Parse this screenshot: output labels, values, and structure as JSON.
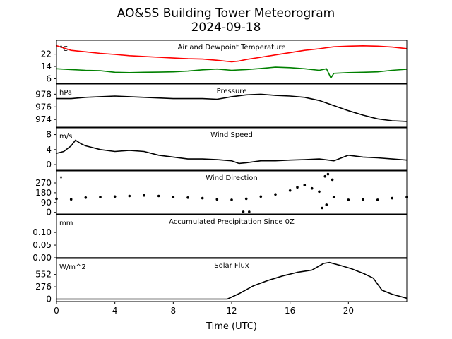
{
  "figure": {
    "title": "AO&SS Building Tower Meteorogram",
    "subtitle": "2024-09-18",
    "xlabel": "Time (UTC)",
    "x_ticks": [
      0,
      4,
      8,
      12,
      16,
      20
    ],
    "x_range": [
      0,
      24
    ]
  },
  "chart_data": [
    {
      "type": "line",
      "title": "Air and Dewpoint Temperature",
      "unit": "°C",
      "ylim": [
        3,
        31
      ],
      "yticks": [
        6,
        14,
        22
      ],
      "series": [
        {
          "color": "#ff0000",
          "x": [
            0,
            0.5,
            1,
            1.5,
            2,
            3,
            4,
            5,
            6,
            7,
            8,
            9,
            10,
            11,
            12,
            12.5,
            13,
            14,
            15,
            16,
            17,
            18,
            18.5,
            19,
            20,
            21,
            22,
            23,
            24
          ],
          "y": [
            27.5,
            26,
            24.5,
            24,
            23.5,
            22.5,
            21.8,
            21,
            20.5,
            20,
            19.5,
            19,
            18.8,
            18,
            17,
            17.5,
            18.5,
            20,
            21.5,
            23,
            24.5,
            25.5,
            26.2,
            26.8,
            27.2,
            27.4,
            27.2,
            26.6,
            25.6
          ]
        },
        {
          "color": "#008000",
          "x": [
            0,
            1,
            2,
            3,
            4,
            5,
            6,
            7,
            8,
            9,
            10,
            11,
            12,
            13,
            14,
            15,
            16,
            17,
            18,
            18.5,
            18.8,
            19,
            20,
            21,
            22,
            23,
            24
          ],
          "y": [
            12.5,
            12,
            11.5,
            11.2,
            10.2,
            10,
            10.2,
            10.3,
            10.5,
            11,
            11.8,
            12.3,
            11.5,
            12,
            12.7,
            13.5,
            13.2,
            12.5,
            11.5,
            12.5,
            6.5,
            9.5,
            10,
            10.2,
            10.5,
            11.5,
            12.2
          ]
        }
      ]
    },
    {
      "type": "line",
      "title": "Pressure",
      "unit": "hPa",
      "ylim": [
        972.8,
        979.6
      ],
      "yticks": [
        974,
        976,
        978
      ],
      "series": [
        {
          "color": "#000000",
          "x": [
            0,
            1,
            2,
            3,
            4,
            5,
            6,
            7,
            8,
            9,
            10,
            11,
            12,
            13,
            14,
            15,
            16,
            17,
            18,
            19,
            20,
            21,
            22,
            23,
            24
          ],
          "y": [
            977.3,
            977.3,
            977.5,
            977.6,
            977.7,
            977.6,
            977.5,
            977.4,
            977.3,
            977.3,
            977.3,
            977.2,
            977.6,
            977.9,
            978.0,
            977.8,
            977.7,
            977.5,
            977.0,
            976.2,
            975.4,
            974.7,
            974.1,
            973.8,
            973.7
          ]
        }
      ]
    },
    {
      "type": "line",
      "title": "Wind Speed",
      "unit": "m/s",
      "ylim": [
        -1.5,
        9.8
      ],
      "yticks": [
        0,
        4,
        8
      ],
      "series": [
        {
          "color": "#000000",
          "x": [
            0,
            0.5,
            1,
            1.3,
            1.7,
            2,
            2.5,
            3,
            4,
            5,
            6,
            7,
            8,
            9,
            10,
            11,
            12,
            12.5,
            13,
            14,
            15,
            16,
            17,
            18,
            19,
            20,
            21,
            22,
            23,
            24
          ],
          "y": [
            3,
            3.5,
            5,
            6.5,
            5.5,
            5,
            4.5,
            4,
            3.5,
            3.8,
            3.5,
            2.5,
            2,
            1.5,
            1.5,
            1.3,
            1,
            0.3,
            0.5,
            1,
            1,
            1.2,
            1.3,
            1.5,
            1,
            2.5,
            2,
            1.8,
            1.5,
            1.2
          ]
        }
      ]
    },
    {
      "type": "scatter",
      "title": "Wind Direction",
      "unit": "°",
      "ylim": [
        -15,
        380
      ],
      "yticks": [
        0,
        90,
        180,
        270
      ],
      "series": [
        {
          "color": "#000000",
          "x": [
            0,
            1,
            2,
            3,
            4,
            5,
            6,
            7,
            8,
            9,
            10,
            11,
            12,
            13,
            14,
            15,
            16,
            16.5,
            17,
            17.5,
            18,
            18.5,
            19,
            20,
            21,
            22,
            23,
            24
          ],
          "y": [
            125,
            120,
            135,
            140,
            145,
            150,
            155,
            150,
            140,
            135,
            130,
            120,
            115,
            125,
            145,
            165,
            200,
            230,
            250,
            220,
            190,
            70,
            140,
            115,
            120,
            115,
            130,
            140
          ]
        },
        {
          "color": "#000000",
          "x": [
            12.8,
            13.2,
            18.2,
            18.4,
            18.6,
            18.9
          ],
          "y": [
            5,
            5,
            40,
            330,
            350,
            300
          ]
        }
      ]
    },
    {
      "type": "line",
      "title": "Accumulated Precipitation Since 0Z",
      "unit": "mm",
      "ylim": [
        0,
        0.17
      ],
      "yticks": [
        0.0,
        0.05,
        0.1
      ],
      "ytick_labels": [
        "0.00",
        "0.05",
        "0.10"
      ],
      "series": [
        {
          "color": "#000000",
          "x": [
            0,
            24
          ],
          "y": [
            0,
            0
          ]
        }
      ]
    },
    {
      "type": "line",
      "title": "Solar Flux",
      "unit": "W/m^2",
      "ylim": [
        -55,
        910
      ],
      "yticks": [
        0,
        276,
        552
      ],
      "series": [
        {
          "color": "#000000",
          "x": [
            0,
            6,
            11.7,
            12.5,
            13.5,
            14.5,
            15.5,
            16.5,
            17.5,
            18.3,
            18.7,
            19.5,
            20.2,
            21,
            21.7,
            22.3,
            23,
            24
          ],
          "y": [
            0,
            0,
            0,
            120,
            300,
            420,
            520,
            600,
            650,
            800,
            820,
            750,
            680,
            580,
            470,
            200,
            110,
            20
          ]
        }
      ]
    }
  ]
}
